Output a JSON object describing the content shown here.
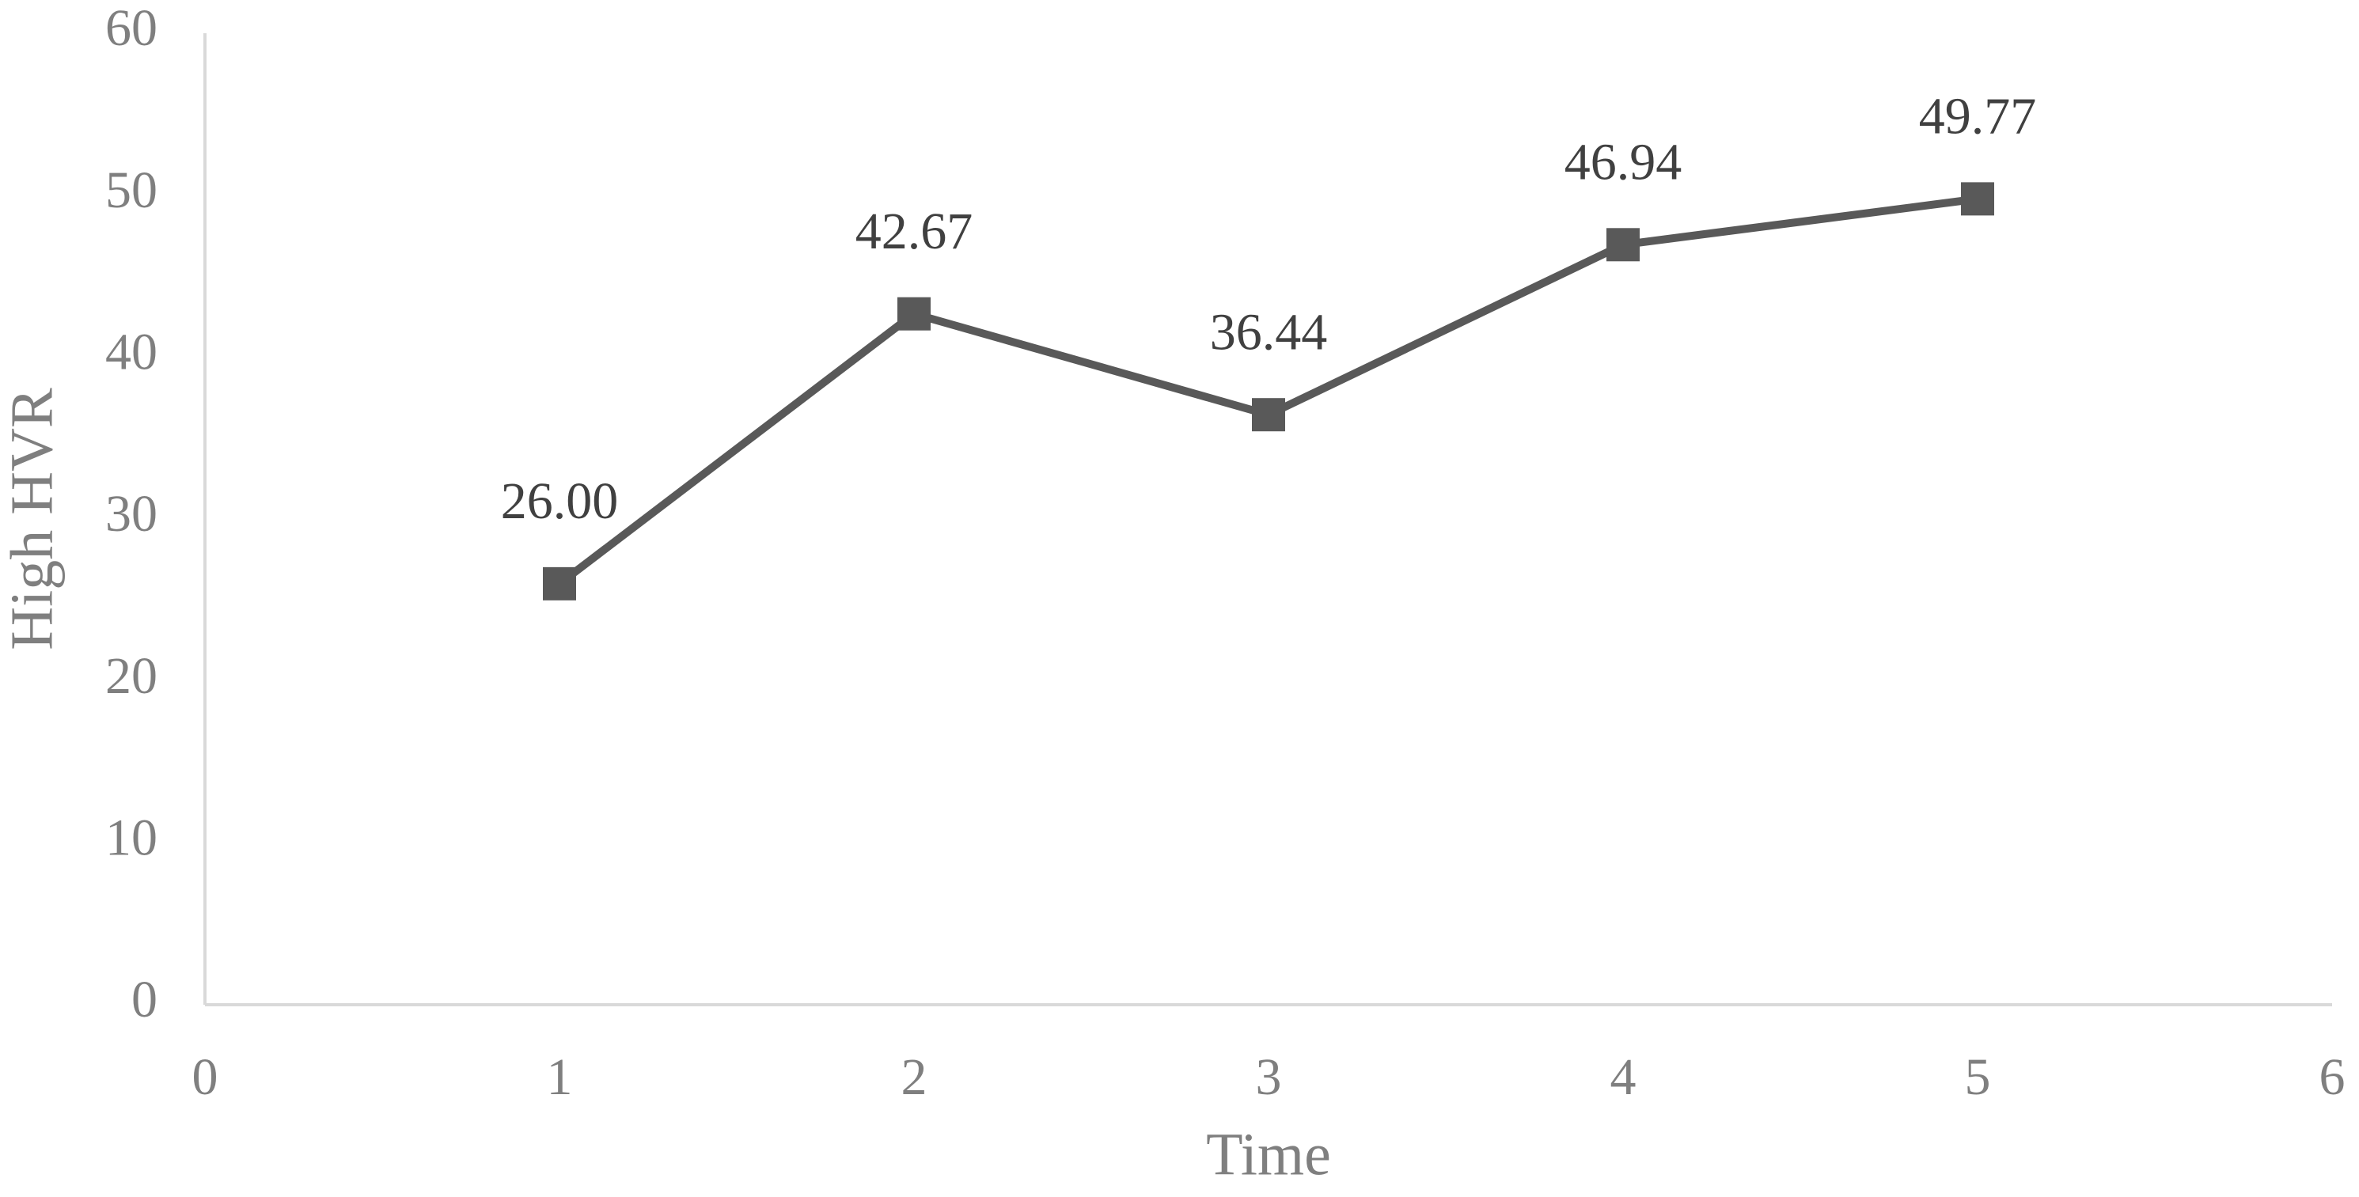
{
  "chart_data": {
    "type": "line",
    "x_label": "Time",
    "y_label": "High HVR",
    "x": [
      1,
      2,
      3,
      4,
      5
    ],
    "series": [
      {
        "name": "High HVR",
        "color": "#595959",
        "values": [
          26.0,
          42.67,
          36.44,
          46.94,
          49.77
        ],
        "value_labels": [
          "26.00",
          "42.67",
          "36.44",
          "46.94",
          "49.77"
        ]
      }
    ],
    "xlim": [
      0,
      6
    ],
    "xticks": [
      0,
      1,
      2,
      3,
      4,
      5,
      6
    ],
    "ylim": [
      0,
      60
    ],
    "yticks": [
      0,
      10,
      20,
      30,
      40,
      50,
      60
    ],
    "grid": false,
    "marker": "square"
  }
}
